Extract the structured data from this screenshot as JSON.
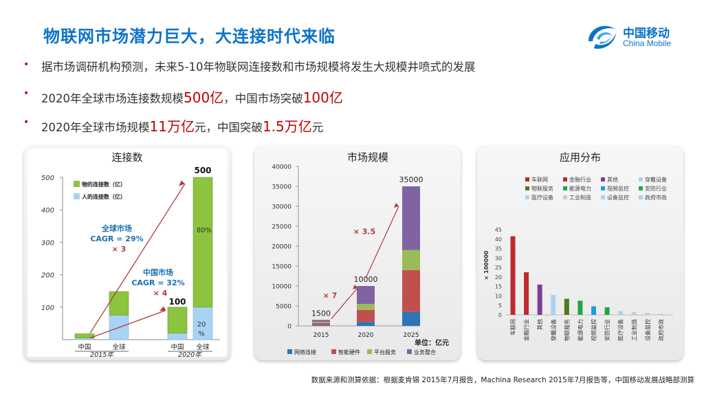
{
  "title": "物联网市场潜力巨大，大连接时代来临",
  "logo": {
    "cn": "中国移动",
    "en": "China Mobile"
  },
  "bullets": [
    {
      "pre": "据市场调研机构预测，未来5-10年物联网连接数和市场规模将发生大规模井喷式的发展",
      "h1": "",
      "mid": "",
      "h2": "",
      "post": ""
    },
    {
      "pre": "2020年全球市场连接数规模",
      "h1": "500亿",
      "mid": "，中国市场突破",
      "h2": "100亿",
      "post": ""
    },
    {
      "pre": "2020年全球市场规模",
      "h1": "11万亿",
      "mid": "元，中国突破",
      "h2": "1.5万亿",
      "post": "元"
    }
  ],
  "colors": {
    "title": "#0b73c9",
    "highlight": "#c00000",
    "green": "#8cc43f",
    "lightblue": "#a9d3f5",
    "arrow": "#b03a3a"
  },
  "footer": "数据来源和测算依据：根据麦肯锡 2015年7月报告，Machina Research 2015年7月报告等，中国移动发展战略部测算",
  "chart_data": [
    {
      "type": "bar",
      "title": "连接数",
      "legend": [
        "物的连接数（亿）",
        "人的连接数（亿）"
      ],
      "categories": [
        "中国",
        "全球",
        "中国",
        "全球"
      ],
      "groups": [
        "2015年",
        "2020年"
      ],
      "series": [
        {
          "name": "人的连接数（亿）",
          "values": [
            5,
            75,
            20,
            100
          ]
        },
        {
          "name": "物的连接数（亿）",
          "values": [
            13,
            73,
            80,
            400
          ]
        }
      ],
      "ylim": [
        0,
        500
      ],
      "yticks": [
        100,
        200,
        300,
        400,
        500
      ],
      "labels": [
        "100",
        "500"
      ],
      "pct_labels": [
        "80%",
        "20",
        "%"
      ],
      "annotations": [
        "全球市场",
        "CAGR = 29%",
        "× 3",
        "中国市场",
        "CAGR = 32%",
        "× 4"
      ]
    },
    {
      "type": "bar",
      "title": "市场规模",
      "categories": [
        "2015",
        "2020",
        "2025"
      ],
      "series": [
        {
          "name": "网络连接",
          "values": [
            200,
            1000,
            3500
          ]
        },
        {
          "name": "智能硬件",
          "values": [
            500,
            3000,
            10500
          ]
        },
        {
          "name": "平台服务",
          "values": [
            300,
            1500,
            5000
          ]
        },
        {
          "name": "业务整合",
          "values": [
            500,
            4500,
            16000
          ]
        }
      ],
      "totals_labels": [
        "1500",
        "10000",
        "35000"
      ],
      "ylim": [
        0,
        40000
      ],
      "yticks": [
        0,
        5000,
        10000,
        15000,
        20000,
        25000,
        30000,
        35000,
        40000
      ],
      "annotations": [
        "× 7",
        "× 3.5"
      ],
      "unit": "单位：亿元"
    },
    {
      "type": "bar",
      "title": "应用分布",
      "ylabel": "× 100000",
      "ylim": [
        0,
        45
      ],
      "yticks": [
        0,
        5,
        10,
        15,
        20,
        25,
        30,
        35,
        40,
        45
      ],
      "categories": [
        "车联网",
        "金融行业",
        "其他",
        "穿戴设备",
        "物联服务",
        "能源电力",
        "视频监控",
        "安防行业",
        "医疗设备",
        "工业制造",
        "设备监控",
        "政府市政"
      ],
      "values": [
        41.5,
        22.5,
        16,
        10.5,
        8.5,
        7.5,
        4.5,
        4,
        2,
        1.5,
        1,
        0.5
      ],
      "colors": [
        "#c0282d",
        "#c0282d",
        "#7b3f98",
        "#a9d3f5",
        "#4d7a1f",
        "#1fa64a",
        "#1e9ee0",
        "#1fa64a",
        "#a9d3f5",
        "#cccccc",
        "#a9d3f5",
        "#a9d3f5"
      ]
    }
  ]
}
